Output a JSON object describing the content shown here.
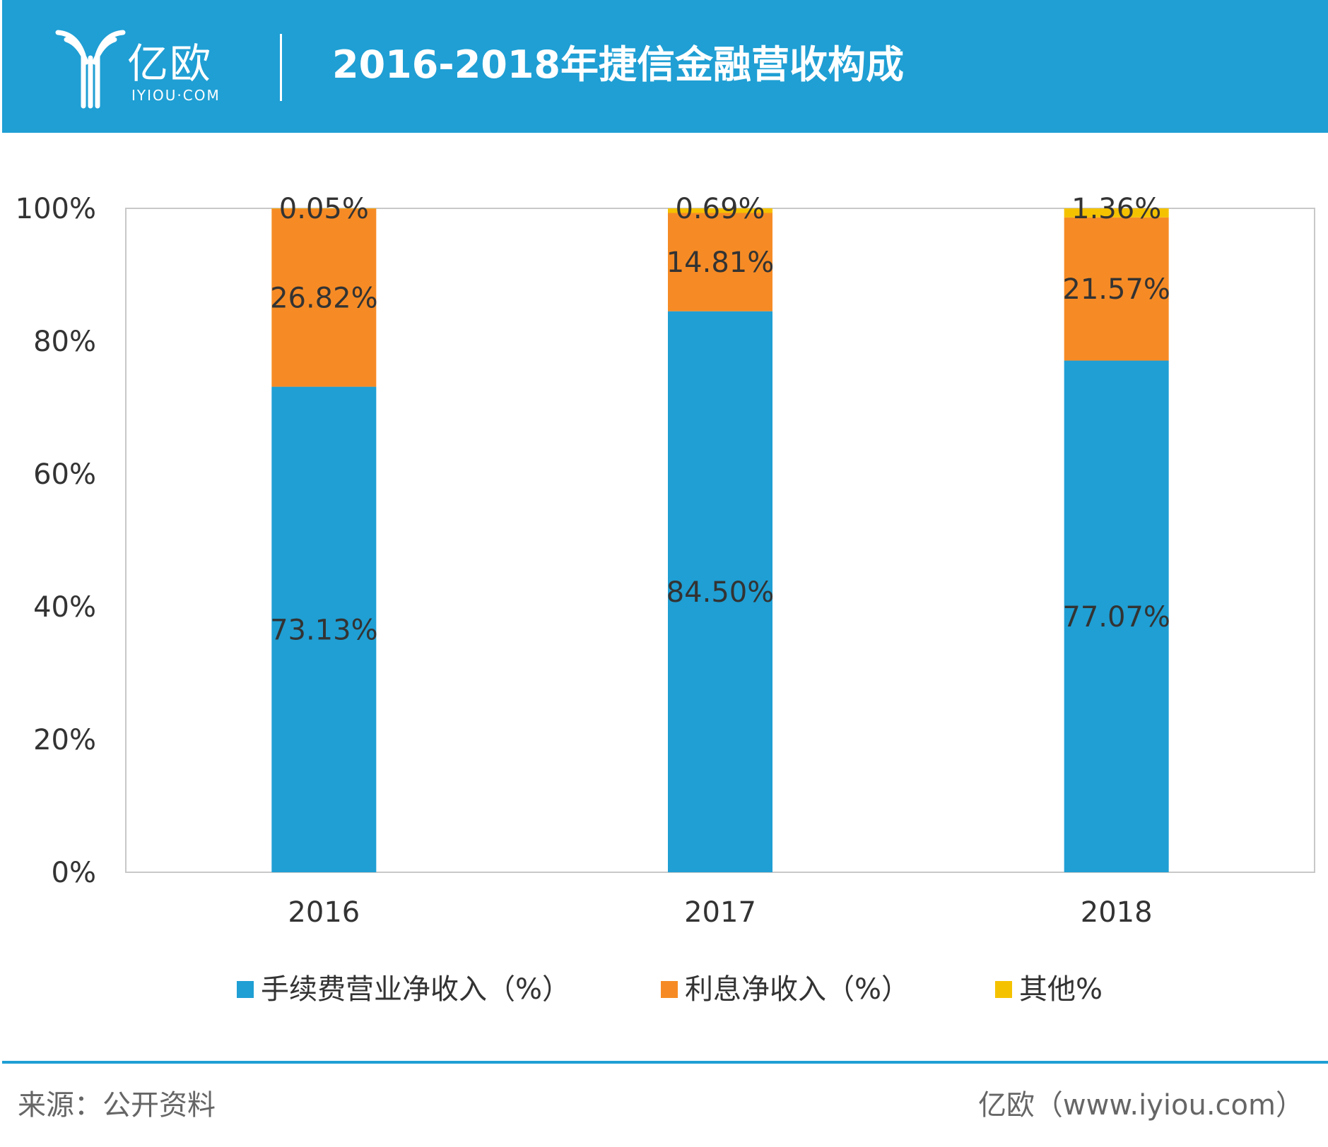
{
  "header": {
    "logo_cn": "亿欧",
    "logo_en": "IYIOU·COM",
    "title": "2016-2018年捷信金融营收构成"
  },
  "colors": {
    "header_bg": "#1f9fd4",
    "fee": "#1f9fd4",
    "interest": "#f68b25",
    "other": "#f5c200"
  },
  "chart_data": {
    "type": "bar",
    "stacked": true,
    "title": "2016-2018年捷信金融营收构成",
    "categories": [
      "2016",
      "2017",
      "2018"
    ],
    "series": [
      {
        "name": "手续费营业净收入（%）",
        "values": [
          73.13,
          84.5,
          77.07
        ],
        "labels": [
          "73.13%",
          "84.50%",
          "77.07%"
        ],
        "color": "#1f9fd4"
      },
      {
        "name": "利息净收入（%）",
        "values": [
          26.82,
          14.81,
          21.57
        ],
        "labels": [
          "26.82%",
          "14.81%",
          "21.57%"
        ],
        "color": "#f68b25"
      },
      {
        "name": "其他%",
        "values": [
          0.05,
          0.69,
          1.36
        ],
        "labels": [
          "0.05%",
          "0.69%",
          "1.36%"
        ],
        "color": "#f5c200"
      }
    ],
    "ylim": [
      0,
      100
    ],
    "yticks": [
      "0%",
      "20%",
      "40%",
      "60%",
      "80%",
      "100%"
    ],
    "grid": false,
    "legend_position": "bottom"
  },
  "footer": {
    "source": "来源：公开资料",
    "credit": "亿欧（www.iyiou.com）"
  }
}
